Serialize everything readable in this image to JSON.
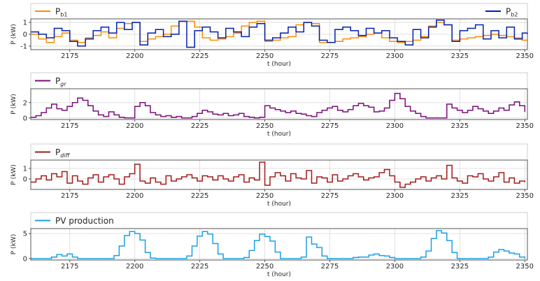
{
  "chart_data": [
    {
      "type": "line",
      "xlabel": "t (hour)",
      "ylabel": "P (kW)",
      "xlim": [
        2160,
        2351
      ],
      "ylim": [
        -1.3,
        1.3
      ],
      "grid": true,
      "xticks": [
        2175,
        2200,
        2225,
        2250,
        2275,
        2300,
        2325,
        2350
      ],
      "yticks": [
        -1,
        0,
        1
      ],
      "series": [
        {
          "name": "Pb1",
          "name_main": "P",
          "name_sub": "b1",
          "legend": "top-left",
          "color": "#ff8c00",
          "x": [
            2160,
            2163,
            2166,
            2169,
            2172,
            2175,
            2178,
            2181,
            2184,
            2187,
            2190,
            2193,
            2196,
            2199,
            2202,
            2205,
            2208,
            2211,
            2214,
            2217,
            2220,
            2223,
            2226,
            2229,
            2232,
            2235,
            2238,
            2241,
            2244,
            2247,
            2250,
            2253,
            2256,
            2259,
            2262,
            2265,
            2268,
            2271,
            2274,
            2277,
            2280,
            2283,
            2286,
            2289,
            2292,
            2295,
            2298,
            2301,
            2304,
            2307,
            2310,
            2313,
            2316,
            2319,
            2322,
            2325,
            2328,
            2331,
            2334,
            2337,
            2340,
            2343,
            2346,
            2349,
            2351
          ],
          "y": [
            0.0,
            -0.4,
            -0.7,
            -0.2,
            0.1,
            -0.5,
            -0.7,
            -0.3,
            -0.1,
            0.2,
            -0.3,
            0.5,
            0.9,
            1.0,
            -0.6,
            -0.4,
            -0.2,
            0.0,
            0.7,
            1.1,
            1.1,
            0.6,
            -0.3,
            -0.5,
            -0.4,
            -0.2,
            0.1,
            0.7,
            1.0,
            1.1,
            -0.6,
            -0.5,
            -0.3,
            -0.2,
            0.8,
            1.0,
            0.9,
            -0.7,
            -0.7,
            -0.6,
            -0.4,
            -0.3,
            -0.2,
            0.0,
            0.1,
            -0.3,
            -0.6,
            -0.7,
            -0.6,
            -0.5,
            -0.2,
            0.7,
            1.0,
            0.8,
            -0.5,
            -0.4,
            -0.3,
            -0.2,
            -0.1,
            0.0,
            -0.1,
            -0.2,
            -0.3,
            -0.5,
            -0.5
          ]
        },
        {
          "name": "Pb2",
          "name_main": "P",
          "name_sub": "b2",
          "legend": "top-right",
          "color": "#0020b0",
          "x": [
            2160,
            2163,
            2166,
            2169,
            2172,
            2175,
            2178,
            2181,
            2184,
            2187,
            2190,
            2193,
            2196,
            2199,
            2202,
            2205,
            2208,
            2211,
            2214,
            2217,
            2220,
            2223,
            2226,
            2229,
            2232,
            2235,
            2238,
            2241,
            2244,
            2247,
            2250,
            2253,
            2256,
            2259,
            2262,
            2265,
            2268,
            2271,
            2274,
            2277,
            2280,
            2283,
            2286,
            2289,
            2292,
            2295,
            2298,
            2301,
            2304,
            2307,
            2310,
            2313,
            2316,
            2319,
            2322,
            2325,
            2328,
            2331,
            2334,
            2337,
            2340,
            2343,
            2346,
            2349,
            2351
          ],
          "y": [
            0.2,
            0.0,
            -0.3,
            0.5,
            0.3,
            -0.6,
            -1.0,
            -0.4,
            0.3,
            0.6,
            0.1,
            1.0,
            0.4,
            1.0,
            -0.9,
            0.1,
            0.4,
            -0.2,
            0.0,
            1.1,
            -1.1,
            0.3,
            0.6,
            0.2,
            -0.3,
            0.5,
            0.2,
            -0.2,
            0.6,
            0.9,
            -0.5,
            -0.3,
            0.1,
            0.6,
            0.2,
            1.0,
            0.7,
            -0.5,
            -0.7,
            0.4,
            0.6,
            0.3,
            -0.1,
            0.5,
            0.1,
            0.3,
            -0.3,
            -0.6,
            -0.9,
            0.4,
            -0.3,
            0.6,
            1.2,
            0.8,
            -0.6,
            0.3,
            0.5,
            0.8,
            -0.4,
            0.3,
            -0.3,
            0.6,
            -0.4,
            0.1,
            0.0
          ]
        }
      ]
    },
    {
      "type": "line",
      "xlabel": "t (hour)",
      "ylabel": "P (kW)",
      "xlim": [
        2160,
        2351
      ],
      "ylim": [
        -0.2,
        3.8
      ],
      "grid": true,
      "xticks": [
        2175,
        2200,
        2225,
        2250,
        2275,
        2300,
        2325,
        2350
      ],
      "yticks": [
        0,
        2
      ],
      "series": [
        {
          "name": "Pgr",
          "name_main": "P",
          "name_sub": "gr",
          "legend": "top-left",
          "color": "#7b0d7b",
          "x": [
            2160,
            2162,
            2164,
            2166,
            2168,
            2170,
            2172,
            2174,
            2176,
            2178,
            2180,
            2182,
            2184,
            2186,
            2188,
            2190,
            2192,
            2194,
            2196,
            2198,
            2200,
            2202,
            2204,
            2206,
            2208,
            2210,
            2212,
            2214,
            2216,
            2218,
            2220,
            2222,
            2224,
            2226,
            2228,
            2230,
            2232,
            2234,
            2236,
            2238,
            2240,
            2242,
            2244,
            2246,
            2248,
            2250,
            2252,
            2254,
            2256,
            2258,
            2260,
            2262,
            2264,
            2266,
            2268,
            2270,
            2272,
            2274,
            2276,
            2278,
            2280,
            2282,
            2284,
            2286,
            2288,
            2290,
            2292,
            2294,
            2296,
            2298,
            2300,
            2302,
            2304,
            2306,
            2308,
            2310,
            2312,
            2314,
            2316,
            2318,
            2320,
            2322,
            2324,
            2326,
            2328,
            2330,
            2332,
            2334,
            2336,
            2338,
            2340,
            2342,
            2344,
            2346,
            2348,
            2350
          ],
          "y": [
            0.1,
            0.3,
            0.7,
            1.3,
            1.8,
            1.2,
            1.0,
            1.5,
            2.0,
            2.6,
            2.3,
            1.6,
            0.9,
            0.4,
            0.2,
            0.8,
            0.4,
            0.1,
            0.0,
            0.0,
            1.5,
            2.0,
            1.6,
            0.7,
            0.4,
            0.2,
            0.3,
            0.1,
            0.2,
            0.0,
            0.0,
            0.2,
            0.6,
            1.0,
            0.8,
            0.5,
            0.4,
            0.6,
            0.3,
            0.4,
            0.6,
            0.2,
            0.1,
            0.0,
            0.1,
            1.6,
            1.3,
            1.1,
            0.9,
            0.7,
            0.9,
            0.6,
            0.5,
            0.3,
            0.2,
            0.7,
            1.0,
            1.3,
            1.5,
            1.0,
            0.8,
            1.1,
            1.6,
            1.9,
            1.6,
            1.4,
            0.8,
            0.9,
            1.3,
            2.3,
            3.2,
            2.5,
            1.5,
            0.9,
            0.6,
            0.2,
            0.0,
            0.0,
            0.0,
            0.0,
            1.8,
            1.3,
            1.0,
            0.7,
            1.0,
            1.5,
            1.2,
            0.9,
            0.6,
            0.9,
            1.3,
            1.0,
            1.7,
            2.1,
            1.6,
            0.8
          ]
        }
      ]
    },
    {
      "type": "line",
      "xlabel": "t (hour)",
      "ylabel": "P (kW)",
      "xlim": [
        2160,
        2351
      ],
      "ylim": [
        -1.0,
        1.8
      ],
      "grid": true,
      "xticks": [
        2175,
        2200,
        2225,
        2250,
        2275,
        2300,
        2325,
        2350
      ],
      "yticks": [
        0,
        1
      ],
      "series": [
        {
          "name": "Pdiff",
          "name_main": "P",
          "name_sub": "diff",
          "legend": "top-left",
          "color": "#a31a1a",
          "x": [
            2160,
            2162,
            2164,
            2166,
            2168,
            2170,
            2172,
            2174,
            2176,
            2178,
            2180,
            2182,
            2184,
            2186,
            2188,
            2190,
            2192,
            2194,
            2196,
            2198,
            2200,
            2202,
            2204,
            2206,
            2208,
            2210,
            2212,
            2214,
            2216,
            2218,
            2220,
            2222,
            2224,
            2226,
            2228,
            2230,
            2232,
            2234,
            2236,
            2238,
            2240,
            2242,
            2244,
            2246,
            2248,
            2250,
            2252,
            2254,
            2256,
            2258,
            2260,
            2262,
            2264,
            2266,
            2268,
            2270,
            2272,
            2274,
            2276,
            2278,
            2280,
            2282,
            2284,
            2286,
            2288,
            2290,
            2292,
            2294,
            2296,
            2298,
            2300,
            2302,
            2304,
            2306,
            2308,
            2310,
            2312,
            2314,
            2316,
            2318,
            2320,
            2322,
            2324,
            2326,
            2328,
            2330,
            2332,
            2334,
            2336,
            2338,
            2340,
            2342,
            2344,
            2346,
            2348,
            2350
          ],
          "y": [
            -0.3,
            0.0,
            0.3,
            -0.1,
            0.5,
            0.2,
            0.7,
            -0.4,
            0.3,
            -0.2,
            -0.5,
            0.1,
            0.4,
            -0.3,
            0.2,
            0.4,
            0.0,
            -0.5,
            0.2,
            0.5,
            1.4,
            -0.2,
            -0.4,
            0.1,
            -0.3,
            -0.5,
            0.3,
            -0.2,
            0.0,
            0.2,
            0.4,
            0.1,
            -0.2,
            0.3,
            0.2,
            -0.1,
            0.3,
            0.0,
            -0.2,
            0.2,
            0.4,
            -0.3,
            0.1,
            -0.1,
            1.6,
            -0.6,
            0.2,
            0.6,
            0.3,
            -0.2,
            0.5,
            0.1,
            0.0,
            0.8,
            -0.4,
            0.2,
            0.1,
            -0.3,
            0.4,
            -0.2,
            0.0,
            0.3,
            0.5,
            0.2,
            -0.1,
            0.1,
            0.2,
            0.6,
            0.9,
            0.3,
            -0.3,
            -0.8,
            -0.5,
            -0.3,
            0.0,
            0.2,
            -0.2,
            0.1,
            0.3,
            0.0,
            1.3,
            0.1,
            -0.2,
            -0.4,
            0.3,
            0.2,
            0.5,
            0.0,
            -0.2,
            0.2,
            0.6,
            -0.3,
            0.1,
            -0.4,
            -0.2,
            -0.3
          ]
        }
      ]
    },
    {
      "type": "line",
      "xlabel": "t (hour)",
      "ylabel": "P (kW)",
      "xlim": [
        2160,
        2351
      ],
      "ylim": [
        -0.3,
        6.0
      ],
      "grid": true,
      "xticks": [
        2175,
        2200,
        2225,
        2250,
        2275,
        2300,
        2325,
        2350
      ],
      "yticks": [
        0,
        5
      ],
      "series": [
        {
          "name": "PV production",
          "name_main": "PV production",
          "name_sub": "",
          "legend": "top-left",
          "color": "#1aa0e6",
          "x": [
            2160,
            2162,
            2164,
            2166,
            2168,
            2170,
            2172,
            2174,
            2176,
            2178,
            2180,
            2182,
            2184,
            2186,
            2188,
            2190,
            2192,
            2194,
            2196,
            2198,
            2200,
            2202,
            2204,
            2206,
            2208,
            2210,
            2212,
            2214,
            2216,
            2218,
            2220,
            2222,
            2224,
            2226,
            2228,
            2230,
            2232,
            2234,
            2236,
            2238,
            2240,
            2242,
            2244,
            2246,
            2248,
            2250,
            2252,
            2254,
            2256,
            2258,
            2260,
            2262,
            2264,
            2266,
            2268,
            2270,
            2272,
            2274,
            2276,
            2278,
            2280,
            2282,
            2284,
            2286,
            2288,
            2290,
            2292,
            2294,
            2296,
            2298,
            2300,
            2302,
            2304,
            2306,
            2308,
            2310,
            2312,
            2314,
            2316,
            2318,
            2320,
            2322,
            2324,
            2326,
            2328,
            2330,
            2332,
            2334,
            2336,
            2338,
            2340,
            2342,
            2344,
            2346,
            2348,
            2350
          ],
          "y": [
            0.0,
            0.0,
            0.0,
            0.0,
            0.3,
            0.8,
            0.5,
            0.9,
            0.3,
            0.0,
            0.0,
            0.0,
            0.0,
            0.0,
            0.0,
            0.0,
            0.6,
            2.5,
            4.6,
            5.4,
            5.0,
            3.7,
            1.2,
            0.1,
            0.0,
            0.0,
            0.0,
            0.0,
            0.0,
            0.0,
            0.5,
            2.5,
            4.5,
            5.4,
            4.9,
            3.0,
            0.9,
            0.0,
            0.0,
            0.0,
            0.0,
            0.2,
            1.6,
            3.6,
            4.9,
            4.4,
            3.5,
            1.3,
            0.0,
            0.0,
            0.0,
            0.0,
            0.3,
            4.3,
            2.9,
            2.2,
            0.5,
            0.0,
            0.0,
            0.0,
            0.0,
            0.0,
            0.2,
            0.3,
            0.3,
            0.7,
            0.9,
            0.6,
            0.5,
            0.2,
            0.0,
            0.0,
            0.0,
            0.0,
            0.0,
            0.3,
            1.5,
            4.0,
            5.6,
            5.1,
            3.6,
            1.2,
            0.0,
            0.0,
            0.0,
            0.0,
            0.0,
            0.0,
            0.3,
            1.3,
            1.8,
            1.5,
            1.1,
            0.9,
            0.3,
            0.0
          ]
        }
      ]
    }
  ]
}
